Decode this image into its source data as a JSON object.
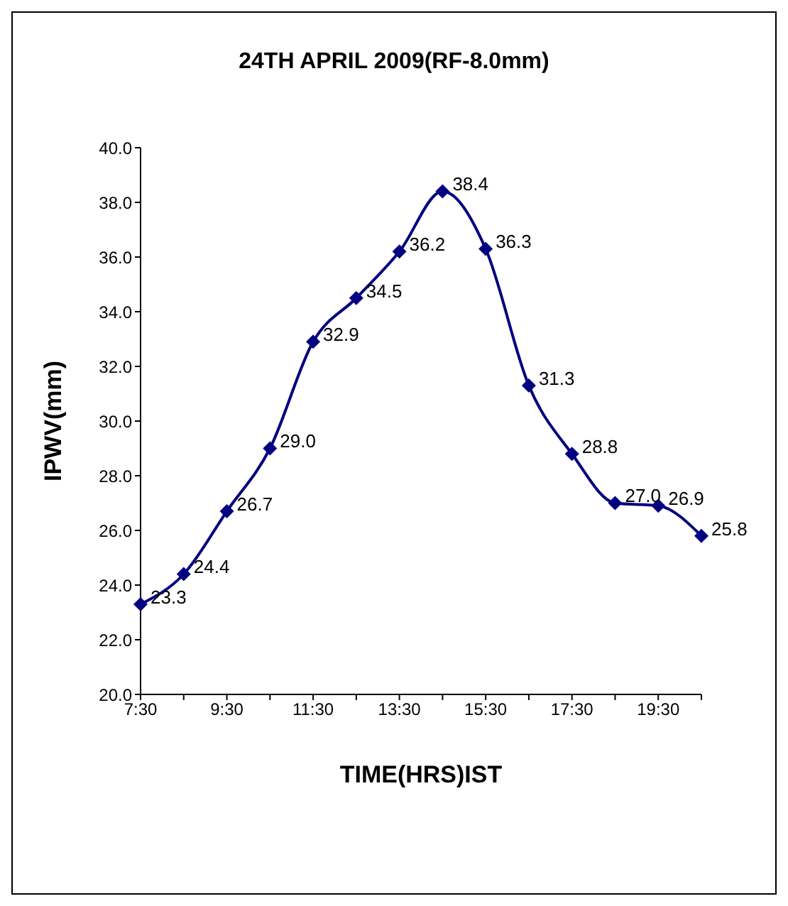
{
  "chart_data": {
    "type": "line",
    "title": "24TH APRIL 2009(RF-8.0mm)",
    "xlabel": "TIME(HRS)IST",
    "ylabel": "IPWV(mm)",
    "categories": [
      "7:30",
      null,
      "9:30",
      null,
      "11:30",
      null,
      "13:30",
      null,
      "15:30",
      null,
      "17:30",
      null,
      "19:30",
      null
    ],
    "series": [
      {
        "color": "#000080",
        "values": [
          23.3,
          24.4,
          26.7,
          29.0,
          32.9,
          34.5,
          36.2,
          38.4,
          36.3,
          31.3,
          28.8,
          27.0,
          26.9,
          25.8
        ],
        "value_labels": [
          "23.3",
          "24.4",
          "26.7",
          "29.0",
          "32.9",
          "34.5",
          "36.2",
          "38.4",
          "36.3",
          "31.3",
          "28.8",
          "27.0",
          "26.9",
          "25.8"
        ]
      }
    ],
    "ylim": [
      20,
      40
    ],
    "yticks": [
      {
        "value": 20,
        "label": "20.0"
      },
      {
        "value": 22,
        "label": "22.0"
      },
      {
        "value": 24,
        "label": "24.0"
      },
      {
        "value": 26,
        "label": "26.0"
      },
      {
        "value": 28,
        "label": "28.0"
      },
      {
        "value": 30,
        "label": "30.0"
      },
      {
        "value": 32,
        "label": "32.0"
      },
      {
        "value": 34,
        "label": "34.0"
      },
      {
        "value": 36,
        "label": "36.0"
      },
      {
        "value": 38,
        "label": "38.0"
      },
      {
        "value": 40,
        "label": "40.0"
      }
    ],
    "marker": "diamond",
    "line_style": "solid",
    "grid": false
  }
}
